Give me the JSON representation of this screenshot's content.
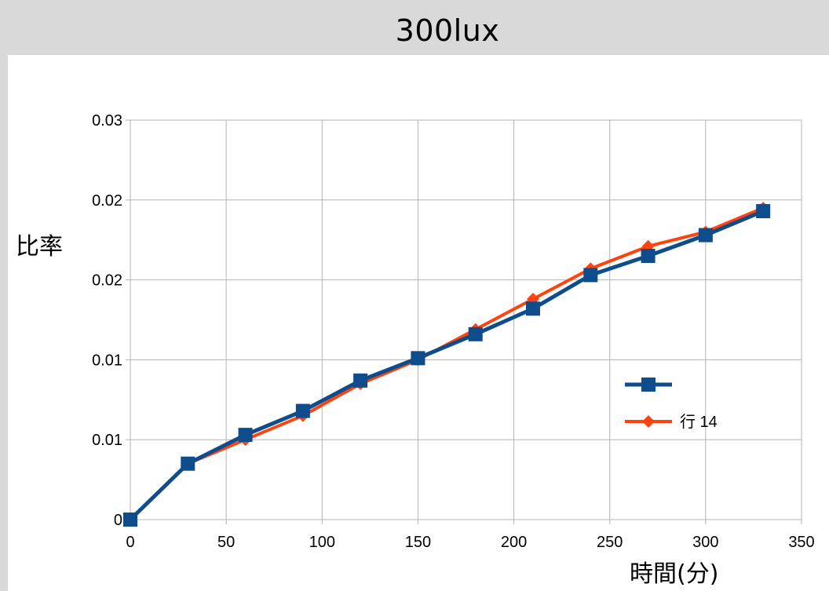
{
  "chart_data": {
    "type": "line",
    "title": "300lux",
    "xlabel": "時間(分)",
    "ylabel": "比率",
    "xlim": [
      0,
      350
    ],
    "ylim": [
      0,
      0.025
    ],
    "x_ticks": [
      0,
      50,
      100,
      150,
      200,
      250,
      300,
      350
    ],
    "x_tick_labels": [
      "0",
      "50",
      "100",
      "150",
      "200",
      "250",
      "300",
      "350"
    ],
    "y_tick_values": [
      0,
      0.005,
      0.01,
      0.015,
      0.02,
      0.025
    ],
    "y_tick_labels": [
      "0",
      "0.01",
      "0.01",
      "0.02",
      "0.02",
      "0.03"
    ],
    "grid": true,
    "legend_position": "right",
    "x": [
      0,
      30,
      60,
      90,
      120,
      150,
      180,
      210,
      240,
      270,
      300,
      330
    ],
    "series": [
      {
        "name": "",
        "color": "#0e4c8c",
        "marker": "square",
        "values": [
          0,
          0.0035,
          0.0053,
          0.0068,
          0.0087,
          0.0101,
          0.0116,
          0.0132,
          0.0153,
          0.0165,
          0.0178,
          0.0193
        ]
      },
      {
        "name": "行 14",
        "color": "#ff420e",
        "marker": "diamond",
        "values": [
          0,
          0.0035,
          0.005,
          0.0065,
          0.0085,
          0.01,
          0.0119,
          0.0138,
          0.0157,
          0.0171,
          0.018,
          0.0195
        ]
      }
    ]
  }
}
